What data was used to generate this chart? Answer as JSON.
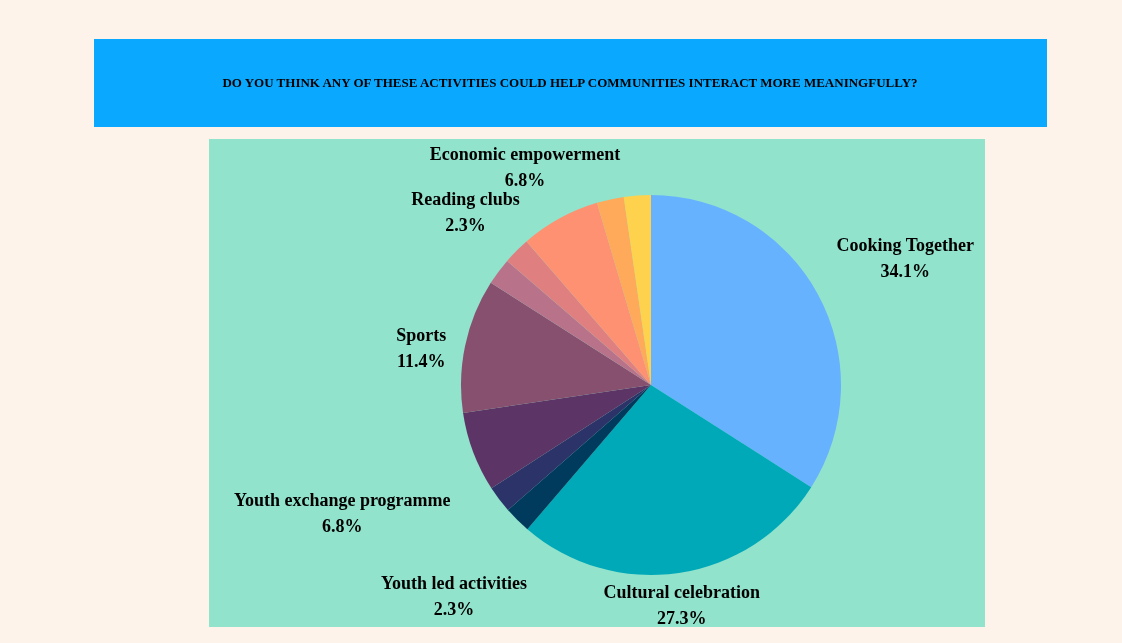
{
  "chart_data": {
    "type": "pie",
    "title": "DO YOU THINK ANY OF THESE ACTIVITIES COULD HELP COMMUNITIES INTERACT MORE MEANINGFULLY?",
    "categories": [
      "Cooking Together",
      "Cultural celebration",
      "Youth led activities",
      null,
      "Youth exchange programme",
      "Sports",
      null,
      "Reading clubs",
      "Economic empowerment",
      null,
      null
    ],
    "values": [
      34.1,
      27.3,
      2.3,
      2.3,
      6.8,
      11.4,
      2.3,
      2.3,
      6.8,
      2.3,
      2.3
    ],
    "colors": [
      "#66b2ff",
      "#00a9b8",
      "#003a5c",
      "#2c3368",
      "#5c3566",
      "#88506f",
      "#b8738a",
      "#e07f80",
      "#ff9173",
      "#ffa95a",
      "#ffd24d"
    ],
    "value_labels": [
      "34.1%",
      "27.3%",
      "2.3%",
      null,
      "6.8%",
      "11.4%",
      null,
      "2.3%",
      "6.8%",
      null,
      null
    ]
  }
}
